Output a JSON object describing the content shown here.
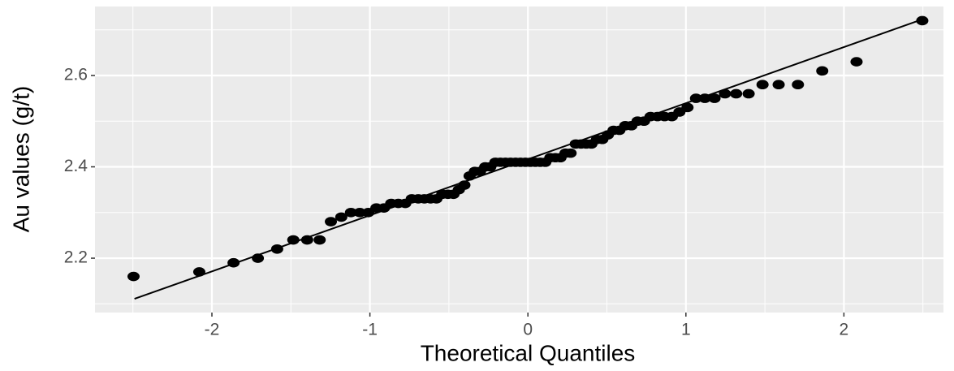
{
  "chart_data": {
    "type": "qq",
    "x_label": "Theoretical Quantiles",
    "y_label": "Au values (g/t)",
    "x": [
      -2.496,
      -2.08,
      -1.863,
      -1.709,
      -1.587,
      -1.485,
      -1.397,
      -1.318,
      -1.247,
      -1.181,
      -1.12,
      -1.064,
      -1.01,
      -0.959,
      -0.911,
      -0.865,
      -0.82,
      -0.776,
      -0.735,
      -0.694,
      -0.655,
      -0.616,
      -0.579,
      -0.542,
      -0.506,
      -0.471,
      -0.437,
      -0.402,
      -0.369,
      -0.336,
      -0.303,
      -0.27,
      -0.238,
      -0.206,
      -0.174,
      -0.142,
      -0.11,
      -0.078,
      -0.047,
      -0.016,
      0.016,
      0.047,
      0.078,
      0.11,
      0.142,
      0.174,
      0.206,
      0.238,
      0.27,
      0.303,
      0.336,
      0.369,
      0.402,
      0.437,
      0.471,
      0.506,
      0.542,
      0.579,
      0.616,
      0.655,
      0.694,
      0.735,
      0.776,
      0.82,
      0.865,
      0.911,
      0.959,
      1.01,
      1.064,
      1.12,
      1.181,
      1.247,
      1.318,
      1.397,
      1.485,
      1.587,
      1.709,
      1.863,
      2.08,
      2.496
    ],
    "values": [
      2.16,
      2.17,
      2.19,
      2.2,
      2.22,
      2.24,
      2.24,
      2.24,
      2.28,
      2.29,
      2.3,
      2.3,
      2.3,
      2.31,
      2.31,
      2.32,
      2.32,
      2.32,
      2.33,
      2.33,
      2.33,
      2.33,
      2.33,
      2.34,
      2.34,
      2.34,
      2.35,
      2.36,
      2.38,
      2.39,
      2.39,
      2.4,
      2.4,
      2.41,
      2.41,
      2.41,
      2.41,
      2.41,
      2.41,
      2.41,
      2.41,
      2.41,
      2.41,
      2.41,
      2.42,
      2.42,
      2.42,
      2.43,
      2.43,
      2.45,
      2.45,
      2.45,
      2.45,
      2.46,
      2.46,
      2.47,
      2.48,
      2.48,
      2.49,
      2.49,
      2.5,
      2.5,
      2.51,
      2.51,
      2.51,
      2.51,
      2.52,
      2.53,
      2.55,
      2.55,
      2.55,
      2.56,
      2.56,
      2.56,
      2.58,
      2.58,
      2.58,
      2.61,
      2.63,
      2.72
    ],
    "color": "#000000",
    "reference_line": {
      "x": [
        -2.49,
        2.48
      ],
      "y": [
        2.111,
        2.721
      ],
      "color": "#000000"
    },
    "xlim": [
      -2.74,
      2.63
    ],
    "ylim": [
      2.081,
      2.751
    ],
    "xticks": [
      -2,
      -1,
      0,
      1,
      2
    ],
    "yticks": [
      2.2,
      2.4,
      2.6
    ],
    "xminor": [
      -2.5,
      -1.5,
      -0.5,
      0.5,
      1.5,
      2.5
    ],
    "yminor": [
      2.1,
      2.3,
      2.5,
      2.7
    ],
    "grid": true
  }
}
